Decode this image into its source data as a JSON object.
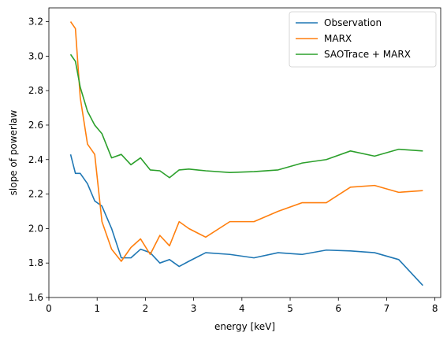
{
  "chart_data": {
    "type": "line",
    "xlabel": "energy [keV]",
    "ylabel": "slope of powerlaw",
    "xlim": [
      0,
      8.12
    ],
    "ylim": [
      1.6,
      3.28
    ],
    "xticks": [
      0,
      1,
      2,
      3,
      4,
      5,
      6,
      7,
      8
    ],
    "yticks": [
      1.6,
      1.8,
      2.0,
      2.2,
      2.4,
      2.6,
      2.8,
      3.0,
      3.2
    ],
    "xtick_labels": [
      "0",
      "1",
      "2",
      "3",
      "4",
      "5",
      "6",
      "7",
      "8"
    ],
    "ytick_labels": [
      "1.6",
      "1.8",
      "2.0",
      "2.2",
      "2.4",
      "2.6",
      "2.8",
      "3.0",
      "3.2"
    ],
    "grid": false,
    "legend_position": "top-right",
    "x": [
      0.45,
      0.55,
      0.65,
      0.8,
      0.95,
      1.1,
      1.3,
      1.5,
      1.7,
      1.9,
      2.1,
      2.3,
      2.5,
      2.7,
      2.9,
      3.25,
      3.75,
      4.25,
      4.75,
      5.25,
      5.75,
      6.25,
      6.75,
      7.25,
      7.75
    ],
    "series": [
      {
        "name": "Observation",
        "color": "#1f77b4",
        "values": [
          2.43,
          2.32,
          2.32,
          2.26,
          2.16,
          2.13,
          2.0,
          1.83,
          1.83,
          1.88,
          1.86,
          1.8,
          1.82,
          1.78,
          1.81,
          1.86,
          1.85,
          1.83,
          1.86,
          1.85,
          1.875,
          1.87,
          1.86,
          1.82,
          1.67
        ]
      },
      {
        "name": "MARX",
        "color": "#ff7f0e",
        "values": [
          3.2,
          3.16,
          2.76,
          2.49,
          2.43,
          2.04,
          1.88,
          1.81,
          1.89,
          1.94,
          1.85,
          1.96,
          1.9,
          2.04,
          2.0,
          1.95,
          2.04,
          2.04,
          2.1,
          2.15,
          2.15,
          2.24,
          2.25,
          2.21,
          2.22
        ]
      },
      {
        "name": "SAOTrace + MARX",
        "color": "#2ca02c",
        "values": [
          3.01,
          2.97,
          2.82,
          2.68,
          2.6,
          2.55,
          2.41,
          2.43,
          2.37,
          2.41,
          2.34,
          2.335,
          2.295,
          2.34,
          2.345,
          2.335,
          2.325,
          2.33,
          2.34,
          2.38,
          2.4,
          2.45,
          2.42,
          2.46,
          2.45
        ]
      }
    ]
  }
}
